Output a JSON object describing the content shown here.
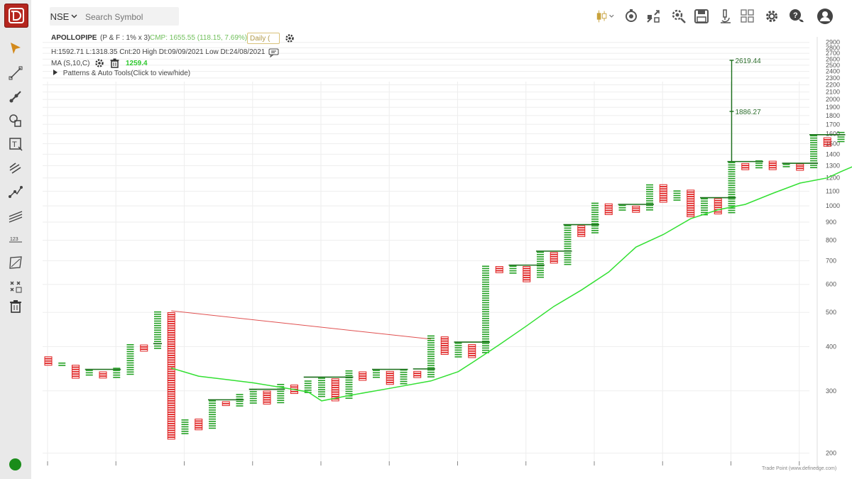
{
  "app": {
    "logo_icon": "definedge-logo-icon",
    "brand_color": "#b5261e",
    "status_color": "#1a8c1a",
    "footer_credit": "Trade Point (www.definedge.com)"
  },
  "toolbar": {
    "exchange": "NSE",
    "search_placeholder": "Search Symbol",
    "icons": [
      "candlestick-chart-icon",
      "camera-settings-icon",
      "compare-icon",
      "scan-gear-icon",
      "save-icon",
      "microscope-icon",
      "layout-grid-icon",
      "settings-icon",
      "chat-help-icon",
      "user-profile-icon"
    ]
  },
  "sidebar_tools": [
    "cursor-arrow-icon",
    "trendline-icon",
    "ray-line-icon",
    "shapes-icon",
    "text-note-icon",
    "pitchfork-icon",
    "line-points-icon",
    "parallel-channel-icon",
    "numbering-123-icon",
    "polygon-icon",
    "grid-tool-icon",
    "trash-icon"
  ],
  "header": {
    "symbol": "APOLLOPIPE",
    "chart_type": "(P & F : 1% x 3)",
    "cmp": "CMP: 1655.55 (118.15, 7.69%)",
    "timeframe": "Daily (",
    "stats": "H:1592.71 L:1318.35 Cnt:20 High Dt:09/09/2021 Low Dt:24/08/2021",
    "ma_label": "MA (S,10,C)",
    "ma_value": "1259.4",
    "patterns_toggle": "Patterns & Auto Tools(Click to view/hide)"
  },
  "chart_data": {
    "type": "point-and-figure",
    "title": "",
    "xlabel": "",
    "ylabel": "",
    "y_scale": "log",
    "ylim": [
      195,
      2950
    ],
    "y_ticks": [
      200,
      300,
      400,
      500,
      600,
      700,
      800,
      900,
      1000,
      1100,
      1200,
      1300,
      1400,
      1500,
      1600,
      1700,
      1800,
      1900,
      2000,
      2100,
      2200,
      2300,
      2400,
      2500,
      2600,
      2700,
      2800,
      2900
    ],
    "grid": true,
    "colors": {
      "x_column": "#22a022",
      "o_column": "#e02020",
      "breakout_line": "#1a6e1a",
      "ma_line": "#33e033",
      "trendline": "#e05050"
    },
    "columns": [
      {
        "kind": "O",
        "high": 375,
        "low": 355
      },
      {
        "kind": "X",
        "high": 362,
        "low": 352
      },
      {
        "kind": "O",
        "high": 355,
        "low": 324
      },
      {
        "kind": "X",
        "high": 345,
        "low": 330
      },
      {
        "kind": "O",
        "high": 340,
        "low": 324
      },
      {
        "kind": "X",
        "high": 350,
        "low": 327
      },
      {
        "kind": "X",
        "high": 408,
        "low": 330
      },
      {
        "kind": "O",
        "high": 405,
        "low": 388
      },
      {
        "kind": "X",
        "high": 505,
        "low": 392
      },
      {
        "kind": "O",
        "high": 500,
        "low": 220
      },
      {
        "kind": "X",
        "high": 250,
        "low": 224
      },
      {
        "kind": "O",
        "high": 250,
        "low": 232
      },
      {
        "kind": "X",
        "high": 283,
        "low": 234
      },
      {
        "kind": "O",
        "high": 280,
        "low": 270
      },
      {
        "kind": "X",
        "high": 295,
        "low": 270
      },
      {
        "kind": "X",
        "high": 305,
        "low": 273
      },
      {
        "kind": "O",
        "high": 300,
        "low": 273
      },
      {
        "kind": "X",
        "high": 315,
        "low": 276
      },
      {
        "kind": "O",
        "high": 312,
        "low": 294
      },
      {
        "kind": "X",
        "high": 322,
        "low": 295
      },
      {
        "kind": "X",
        "high": 328,
        "low": 287
      },
      {
        "kind": "O",
        "high": 325,
        "low": 280
      },
      {
        "kind": "X",
        "high": 344,
        "low": 282
      },
      {
        "kind": "O",
        "high": 340,
        "low": 320
      },
      {
        "kind": "X",
        "high": 345,
        "low": 323
      },
      {
        "kind": "O",
        "high": 341,
        "low": 310
      },
      {
        "kind": "X",
        "high": 346,
        "low": 312
      },
      {
        "kind": "O",
        "high": 341,
        "low": 327
      },
      {
        "kind": "X",
        "high": 432,
        "low": 328
      },
      {
        "kind": "O",
        "high": 427,
        "low": 378
      },
      {
        "kind": "X",
        "high": 412,
        "low": 373
      },
      {
        "kind": "O",
        "high": 406,
        "low": 374
      },
      {
        "kind": "X",
        "high": 680,
        "low": 382
      },
      {
        "kind": "O",
        "high": 675,
        "low": 645
      },
      {
        "kind": "X",
        "high": 680,
        "low": 645
      },
      {
        "kind": "O",
        "high": 675,
        "low": 613
      },
      {
        "kind": "X",
        "high": 745,
        "low": 625
      },
      {
        "kind": "O",
        "high": 740,
        "low": 685
      },
      {
        "kind": "X",
        "high": 885,
        "low": 680
      },
      {
        "kind": "O",
        "high": 880,
        "low": 815
      },
      {
        "kind": "X",
        "high": 1025,
        "low": 835
      },
      {
        "kind": "O",
        "high": 1015,
        "low": 945
      },
      {
        "kind": "X",
        "high": 1010,
        "low": 960
      },
      {
        "kind": "O",
        "high": 1000,
        "low": 960
      },
      {
        "kind": "X",
        "high": 1155,
        "low": 965
      },
      {
        "kind": "O",
        "high": 1150,
        "low": 1020
      },
      {
        "kind": "X",
        "high": 1110,
        "low": 1035
      },
      {
        "kind": "O",
        "high": 1110,
        "low": 930
      },
      {
        "kind": "X",
        "high": 1055,
        "low": 938
      },
      {
        "kind": "O",
        "high": 1050,
        "low": 945
      },
      {
        "kind": "X",
        "high": 1335,
        "low": 955
      },
      {
        "kind": "O",
        "high": 1320,
        "low": 1255
      },
      {
        "kind": "X",
        "high": 1350,
        "low": 1268
      },
      {
        "kind": "O",
        "high": 1340,
        "low": 1265
      },
      {
        "kind": "X",
        "high": 1320,
        "low": 1275
      },
      {
        "kind": "O",
        "high": 1315,
        "low": 1255
      },
      {
        "kind": "X",
        "high": 1590,
        "low": 1270
      },
      {
        "kind": "O",
        "high": 1560,
        "low": 1480
      },
      {
        "kind": "X",
        "high": 1625,
        "low": 1500
      }
    ],
    "ma_series": {
      "name": "MA (S,10,C)",
      "points": [
        {
          "col": 9,
          "v": 348
        },
        {
          "col": 11,
          "v": 330
        },
        {
          "col": 13,
          "v": 323
        },
        {
          "col": 15,
          "v": 316
        },
        {
          "col": 17,
          "v": 307
        },
        {
          "col": 19,
          "v": 298
        },
        {
          "col": 20,
          "v": 281
        },
        {
          "col": 22,
          "v": 291
        },
        {
          "col": 25,
          "v": 305
        },
        {
          "col": 28,
          "v": 320
        },
        {
          "col": 30,
          "v": 340
        },
        {
          "col": 31,
          "v": 360
        },
        {
          "col": 33,
          "v": 405
        },
        {
          "col": 35,
          "v": 458
        },
        {
          "col": 37,
          "v": 520
        },
        {
          "col": 39,
          "v": 578
        },
        {
          "col": 41,
          "v": 650
        },
        {
          "col": 43,
          "v": 765
        },
        {
          "col": 45,
          "v": 830
        },
        {
          "col": 47,
          "v": 920
        },
        {
          "col": 49,
          "v": 975
        },
        {
          "col": 51,
          "v": 1010
        },
        {
          "col": 53,
          "v": 1085
        },
        {
          "col": 55,
          "v": 1160
        },
        {
          "col": 57,
          "v": 1200
        },
        {
          "col": 58,
          "v": 1250
        },
        {
          "col": 60,
          "v": 1350
        }
      ]
    },
    "trendline": {
      "from": {
        "col": 9,
        "v": 505
      },
      "to": {
        "col": 28,
        "v": 420
      }
    },
    "breakout_segments": [
      {
        "from_col": 3,
        "to_col": 5,
        "v": 345
      },
      {
        "from_col": 8,
        "to_col": 8,
        "v": 408
      },
      {
        "from_col": 12,
        "to_col": 14,
        "v": 283
      },
      {
        "from_col": 15,
        "to_col": 17,
        "v": 303
      },
      {
        "from_col": 19,
        "to_col": 22,
        "v": 328
      },
      {
        "from_col": 24,
        "to_col": 26,
        "v": 345
      },
      {
        "from_col": 27,
        "to_col": 28,
        "v": 346
      },
      {
        "from_col": 30,
        "to_col": 32,
        "v": 412
      },
      {
        "from_col": 34,
        "to_col": 36,
        "v": 680
      },
      {
        "from_col": 36,
        "to_col": 38,
        "v": 745
      },
      {
        "from_col": 38,
        "to_col": 40,
        "v": 885
      },
      {
        "from_col": 42,
        "to_col": 44,
        "v": 1010
      },
      {
        "from_col": 48,
        "to_col": 50,
        "v": 1055
      },
      {
        "from_col": 50,
        "to_col": 52,
        "v": 1335
      },
      {
        "from_col": 54,
        "to_col": 56,
        "v": 1320
      },
      {
        "from_col": 56,
        "to_col": 58,
        "v": 1590
      }
    ],
    "target_annotations": [
      {
        "label": "2619.44",
        "v": 2580
      },
      {
        "label": "1886.27",
        "v": 1850
      }
    ],
    "target_col": 50
  }
}
